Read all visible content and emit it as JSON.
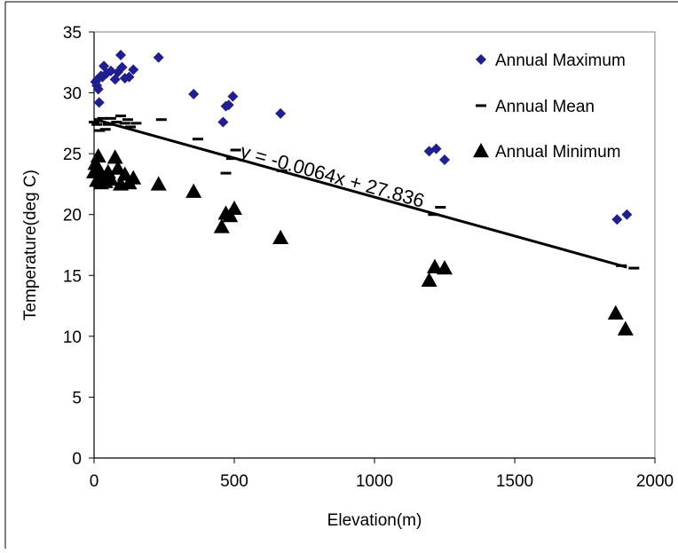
{
  "chart_data": {
    "type": "scatter",
    "xlabel": "Elevation(m)",
    "ylabel": "Temperature(deg C)",
    "xlim": [
      0,
      2000
    ],
    "ylim": [
      0,
      35
    ],
    "x_ticks": [
      0,
      500,
      1000,
      1500,
      2000
    ],
    "y_ticks": [
      0,
      5,
      10,
      15,
      20,
      25,
      30,
      35
    ],
    "grid": false,
    "legend_position": "top-right",
    "trendline": {
      "label": "y = -0.0064x + 27.836",
      "slope": -0.0064,
      "intercept": 27.836,
      "x_range": [
        0,
        1900
      ]
    },
    "series": [
      {
        "name": "Annual Maximum",
        "marker": "diamond",
        "color": "#1f1f8f",
        "points": [
          [
            5,
            30.9
          ],
          [
            10,
            30.6
          ],
          [
            12,
            31.1
          ],
          [
            15,
            30.3
          ],
          [
            18,
            29.2
          ],
          [
            25,
            31.4
          ],
          [
            30,
            31.3
          ],
          [
            35,
            32.2
          ],
          [
            45,
            31.6
          ],
          [
            60,
            31.8
          ],
          [
            75,
            31.1
          ],
          [
            85,
            31.7
          ],
          [
            95,
            33.1
          ],
          [
            100,
            32.1
          ],
          [
            110,
            31.2
          ],
          [
            125,
            31.3
          ],
          [
            140,
            31.9
          ],
          [
            230,
            32.9
          ],
          [
            355,
            29.9
          ],
          [
            460,
            27.6
          ],
          [
            470,
            28.9
          ],
          [
            480,
            29.0
          ],
          [
            495,
            29.7
          ],
          [
            665,
            28.3
          ],
          [
            1195,
            25.2
          ],
          [
            1220,
            25.4
          ],
          [
            1250,
            24.5
          ],
          [
            1865,
            19.6
          ],
          [
            1900,
            20.0
          ]
        ]
      },
      {
        "name": "Annual Mean",
        "marker": "dash",
        "color": "#000000",
        "points": [
          [
            0,
            27.6
          ],
          [
            10,
            27.4
          ],
          [
            20,
            26.9
          ],
          [
            30,
            27.9
          ],
          [
            40,
            27.0
          ],
          [
            50,
            27.4
          ],
          [
            60,
            27.9
          ],
          [
            80,
            27.6
          ],
          [
            95,
            28.1
          ],
          [
            110,
            27.5
          ],
          [
            120,
            27.8
          ],
          [
            130,
            27.2
          ],
          [
            150,
            27.5
          ],
          [
            240,
            27.8
          ],
          [
            370,
            26.2
          ],
          [
            470,
            23.4
          ],
          [
            490,
            24.6
          ],
          [
            505,
            25.3
          ],
          [
            670,
            23.6
          ],
          [
            1210,
            20.0
          ],
          [
            1235,
            20.6
          ],
          [
            1880,
            15.8
          ],
          [
            1925,
            15.6
          ]
        ]
      },
      {
        "name": "Annual Minimum",
        "marker": "triangle",
        "color": "#000000",
        "points": [
          [
            0,
            23.5
          ],
          [
            5,
            24.2
          ],
          [
            10,
            22.8
          ],
          [
            15,
            24.8
          ],
          [
            20,
            23.6
          ],
          [
            25,
            22.6
          ],
          [
            30,
            23.0
          ],
          [
            40,
            22.7
          ],
          [
            50,
            23.5
          ],
          [
            60,
            22.9
          ],
          [
            75,
            24.7
          ],
          [
            85,
            23.8
          ],
          [
            95,
            22.5
          ],
          [
            110,
            23.3
          ],
          [
            125,
            22.6
          ],
          [
            140,
            23.0
          ],
          [
            230,
            22.5
          ],
          [
            355,
            21.9
          ],
          [
            455,
            19.0
          ],
          [
            470,
            20.1
          ],
          [
            485,
            19.9
          ],
          [
            500,
            20.5
          ],
          [
            665,
            18.1
          ],
          [
            1195,
            14.6
          ],
          [
            1215,
            15.7
          ],
          [
            1250,
            15.6
          ],
          [
            1860,
            11.9
          ],
          [
            1895,
            10.6
          ]
        ]
      }
    ]
  }
}
